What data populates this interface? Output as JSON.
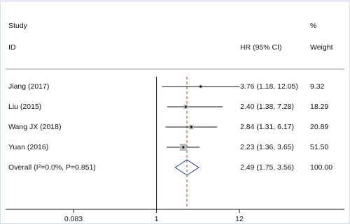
{
  "chart_data": {
    "type": "forest",
    "header": {
      "study": "Study",
      "id": "ID",
      "estimate": "HR (95% CI)",
      "percent": "%",
      "weight": "Weight"
    },
    "categories": [
      "Jiang (2017)",
      "Liu (2015)",
      "Wang JX (2018)",
      "Yuan (2016)",
      "Overall (I²=0.0%, P=0.851)"
    ],
    "values": [
      3.76,
      2.4,
      2.84,
      2.23,
      2.49
    ],
    "lower": [
      1.18,
      1.38,
      1.31,
      1.36,
      1.75
    ],
    "upper": [
      12.05,
      7.28,
      6.17,
      3.65,
      3.56
    ],
    "value_labels": [
      "3.76 (1.18, 12.05)",
      "2.40 (1.38, 7.28)",
      "2.84 (1.31, 6.17)",
      "2.23 (1.36, 3.65)",
      "2.49 (1.75, 3.56)"
    ],
    "weights": [
      9.32,
      18.29,
      20.89,
      51.5,
      100
    ],
    "weight_labels": [
      "9.32",
      "18.29",
      "20.89",
      "51.50",
      "100.00"
    ],
    "xscale": "log",
    "xticks": [
      0.083,
      1,
      12
    ],
    "reference": 1,
    "square_color": "#bdbdbd",
    "overall_line_color": "#c0392b"
  }
}
